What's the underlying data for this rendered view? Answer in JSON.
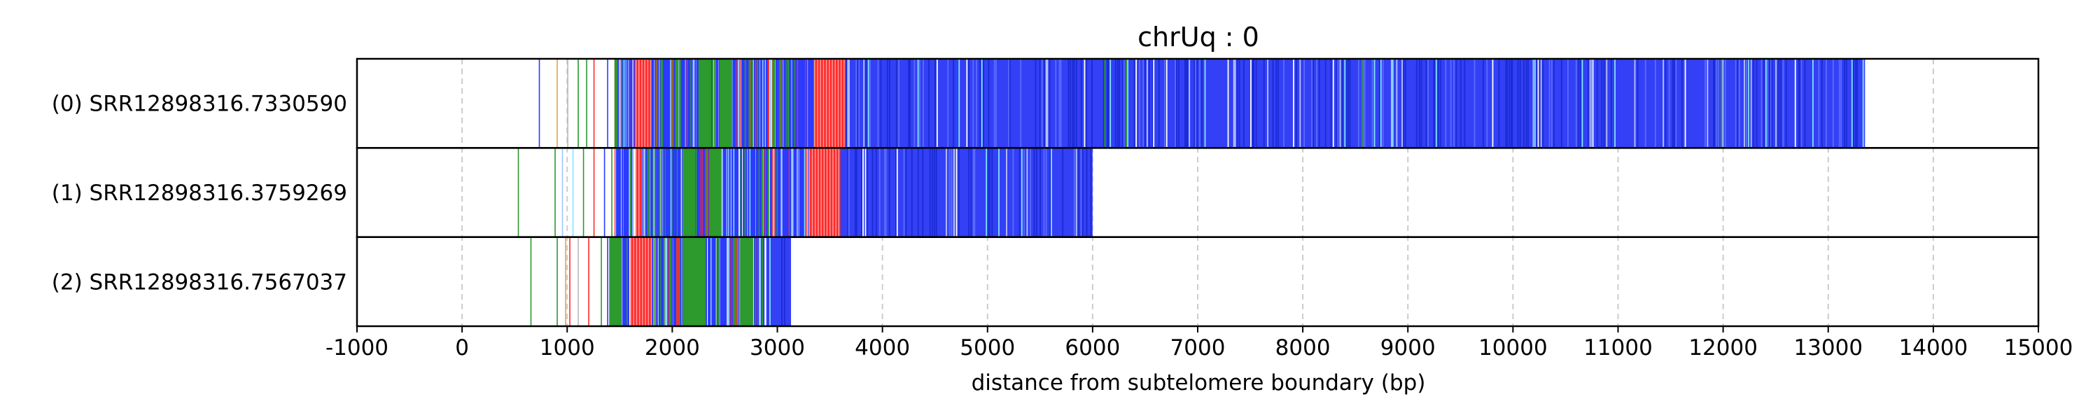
{
  "chart_data": {
    "type": "heatmap",
    "title": "chrUq : 0",
    "xlabel": "distance from subtelomere boundary (bp)",
    "xlim": [
      -1000,
      15000
    ],
    "xticks": [
      -1000,
      0,
      1000,
      2000,
      3000,
      4000,
      5000,
      6000,
      7000,
      8000,
      9000,
      10000,
      11000,
      12000,
      13000,
      14000,
      15000
    ],
    "grid": "vertical dashed",
    "colors": {
      "dominant": "#2b3bff",
      "dense_blue": "#3340f5",
      "red": "#ff2a2a",
      "green": "#2c9a2c",
      "light_blue": "#9fc7ff",
      "cyan": "#7fe6ff",
      "orange": "#e8a23a",
      "gray": "#b8b8b8"
    },
    "rows": [
      {
        "label": "(0) SRR12898316.7330590",
        "start": 730,
        "end": 13350,
        "red_blocks": [
          [
            1650,
            1800
          ],
          [
            3350,
            3650
          ]
        ],
        "green_blocks": [
          [
            2250,
            2350
          ],
          [
            2450,
            2550
          ]
        ],
        "dense_from": 3650,
        "early_lines": [
          {
            "x": 730,
            "color": "#2b3bff"
          },
          {
            "x": 900,
            "color": "#e8a23a"
          },
          {
            "x": 1000,
            "color": "#b8b8b8"
          },
          {
            "x": 1100,
            "color": "#2c9a2c"
          },
          {
            "x": 1180,
            "color": "#2c9a2c"
          },
          {
            "x": 1250,
            "color": "#ff2a2a"
          },
          {
            "x": 1380,
            "color": "#2b3bff"
          },
          {
            "x": 1450,
            "color": "#ff2a2a"
          },
          {
            "x": 1520,
            "color": "#2c9a2c"
          }
        ]
      },
      {
        "label": "(1) SRR12898316.3759269",
        "start": 530,
        "end": 6000,
        "red_blocks": [
          [
            1650,
            1700
          ],
          [
            3300,
            3600
          ]
        ],
        "green_blocks": [
          [
            2100,
            2200
          ],
          [
            2350,
            2450
          ]
        ],
        "dense_from": 3600,
        "early_lines": [
          {
            "x": 530,
            "color": "#2c9a2c"
          },
          {
            "x": 880,
            "color": "#2c9a2c"
          },
          {
            "x": 950,
            "color": "#9fc7ff"
          },
          {
            "x": 1050,
            "color": "#7fe6ff"
          },
          {
            "x": 1150,
            "color": "#2c9a2c"
          },
          {
            "x": 1250,
            "color": "#ff2a2a"
          },
          {
            "x": 1350,
            "color": "#2b3bff"
          },
          {
            "x": 1420,
            "color": "#2c9a2c"
          },
          {
            "x": 1480,
            "color": "#ff2a2a"
          }
        ]
      },
      {
        "label": "(2) SRR12898316.7567037",
        "start": 650,
        "end": 3130,
        "red_blocks": [
          [
            1600,
            1800
          ]
        ],
        "green_blocks": [
          [
            1400,
            1500
          ],
          [
            2100,
            2300
          ],
          [
            2650,
            2750
          ]
        ],
        "dense_from": 2900,
        "early_lines": [
          {
            "x": 650,
            "color": "#2c9a2c"
          },
          {
            "x": 900,
            "color": "#2c9a2c"
          },
          {
            "x": 980,
            "color": "#e8a23a"
          },
          {
            "x": 1020,
            "color": "#ff2a2a"
          },
          {
            "x": 1100,
            "color": "#b8b8b8"
          },
          {
            "x": 1200,
            "color": "#ff2a2a"
          },
          {
            "x": 1320,
            "color": "#2c9a2c"
          },
          {
            "x": 1380,
            "color": "#2b3bff"
          }
        ]
      }
    ]
  }
}
